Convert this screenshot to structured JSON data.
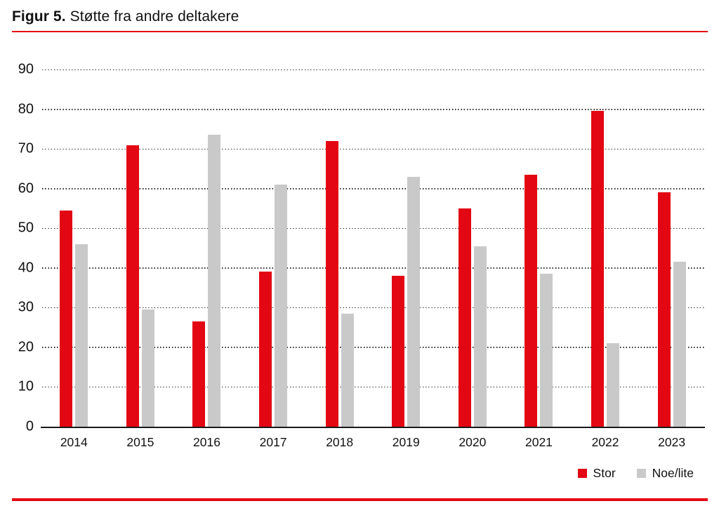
{
  "title": {
    "prefix": "Figur 5.",
    "text": "Støtte fra andre deltakere"
  },
  "colors": {
    "accent_red": "#e30613",
    "bar_gray": "#c9c9c9",
    "grid": "#2e2e2e",
    "axis": "#1a1a1a"
  },
  "legend": [
    {
      "name": "Stor",
      "color": "#e30613"
    },
    {
      "name": "Noe/lite",
      "color": "#c9c9c9"
    }
  ],
  "chart_data": {
    "type": "bar",
    "title": "Figur 5. Støtte fra andre deltakere",
    "categories": [
      "2014",
      "2015",
      "2016",
      "2017",
      "2018",
      "2019",
      "2020",
      "2021",
      "2022",
      "2023"
    ],
    "series": [
      {
        "name": "Stor",
        "color": "#e30613",
        "values": [
          54.5,
          71,
          26.5,
          39,
          72,
          38,
          55,
          63.5,
          79.5,
          59
        ]
      },
      {
        "name": "Noe/lite",
        "color": "#c9c9c9",
        "values": [
          46,
          29.5,
          73.5,
          61,
          28.5,
          63,
          45.5,
          38.5,
          21,
          41.5
        ]
      }
    ],
    "xlabel": "",
    "ylabel": "",
    "ylim": [
      0,
      95
    ],
    "yticks": [
      0,
      10,
      20,
      30,
      40,
      50,
      60,
      70,
      80,
      90
    ],
    "grid": "horizontal-dotted",
    "legend_position": "bottom-right"
  }
}
